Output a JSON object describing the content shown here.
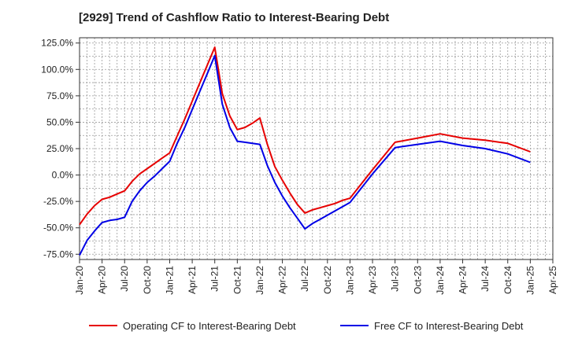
{
  "chart_data": {
    "type": "line",
    "title": "[2929]  Trend of Cashflow Ratio to Interest-Bearing Debt",
    "xlabel": "",
    "ylabel": "",
    "ylim": [
      -80,
      130
    ],
    "y_ticks": [
      "125.0%",
      "100.0%",
      "75.0%",
      "50.0%",
      "25.0%",
      "0.0%",
      "-25.0%",
      "-50.0%",
      "-75.0%"
    ],
    "y_tick_values": [
      125,
      100,
      75,
      50,
      25,
      0,
      -25,
      -50,
      -75
    ],
    "x_range": [
      "2020-01",
      "2025-04"
    ],
    "x_ticks": [
      "Jan-20",
      "Apr-20",
      "Jul-20",
      "Oct-20",
      "Jan-21",
      "Apr-21",
      "Jul-21",
      "Oct-21",
      "Jan-22",
      "Apr-22",
      "Jul-22",
      "Oct-22",
      "Jan-23",
      "Apr-23",
      "Jul-23",
      "Oct-23",
      "Jan-24",
      "Apr-24",
      "Jul-24",
      "Oct-24",
      "Jan-25",
      "Apr-25"
    ],
    "x_tick_months": [
      "2020-01",
      "2020-04",
      "2020-07",
      "2020-10",
      "2021-01",
      "2021-04",
      "2021-07",
      "2021-10",
      "2022-01",
      "2022-04",
      "2022-07",
      "2022-10",
      "2023-01",
      "2023-04",
      "2023-07",
      "2023-10",
      "2024-01",
      "2024-04",
      "2024-07",
      "2024-10",
      "2025-01",
      "2025-04"
    ],
    "grid": true,
    "legend_position": "bottom",
    "series": [
      {
        "name": "Operating CF to Interest-Bearing Debt",
        "color": "#e60000",
        "x": [
          "2020-01",
          "2020-02",
          "2020-03",
          "2020-04",
          "2020-05",
          "2020-06",
          "2020-07",
          "2020-08",
          "2020-09",
          "2020-10",
          "2020-11",
          "2020-12",
          "2021-01",
          "2021-02",
          "2021-03",
          "2021-04",
          "2021-05",
          "2021-06",
          "2021-07",
          "2021-08",
          "2021-09",
          "2021-10",
          "2021-11",
          "2021-12",
          "2022-01",
          "2022-02",
          "2022-03",
          "2022-04",
          "2022-05",
          "2022-06",
          "2022-07",
          "2022-08",
          "2022-09",
          "2022-10",
          "2022-11",
          "2022-12",
          "2023-01",
          "2023-04",
          "2023-07",
          "2023-10",
          "2024-01",
          "2024-04",
          "2024-07",
          "2024-10",
          "2025-01"
        ],
        "values": [
          -47,
          -37,
          -29,
          -23,
          -21,
          -18,
          -15,
          -6,
          1,
          6,
          11,
          16,
          21,
          37,
          53,
          70,
          87,
          104,
          121,
          77,
          56,
          43,
          45,
          49,
          54,
          29,
          8,
          -5,
          -17,
          -28,
          -36,
          -33,
          -31,
          -29,
          -27,
          -24,
          -22,
          5,
          31,
          35,
          39,
          35,
          33,
          30,
          22
        ]
      },
      {
        "name": "Free CF to Interest-Bearing Debt",
        "color": "#0000e6",
        "x": [
          "2020-01",
          "2020-02",
          "2020-03",
          "2020-04",
          "2020-05",
          "2020-06",
          "2020-07",
          "2020-08",
          "2020-09",
          "2020-10",
          "2020-11",
          "2020-12",
          "2021-01",
          "2021-02",
          "2021-03",
          "2021-04",
          "2021-05",
          "2021-06",
          "2021-07",
          "2021-08",
          "2021-09",
          "2021-10",
          "2021-11",
          "2021-12",
          "2022-01",
          "2022-02",
          "2022-03",
          "2022-04",
          "2022-05",
          "2022-06",
          "2022-07",
          "2022-08",
          "2022-09",
          "2022-10",
          "2022-11",
          "2022-12",
          "2023-01",
          "2023-04",
          "2023-07",
          "2023-10",
          "2024-01",
          "2024-04",
          "2024-07",
          "2024-10",
          "2025-01"
        ],
        "values": [
          -76,
          -62,
          -53,
          -45,
          -43,
          -42,
          -40,
          -25,
          -15,
          -7,
          -1,
          6,
          13,
          30,
          45,
          62,
          79,
          96,
          113,
          67,
          45,
          32,
          31,
          30,
          29,
          9,
          -7,
          -20,
          -31,
          -41,
          -51,
          -46,
          -42,
          -38,
          -34,
          -30,
          -26,
          1,
          26,
          29,
          32,
          28,
          25,
          20,
          12
        ]
      }
    ]
  }
}
